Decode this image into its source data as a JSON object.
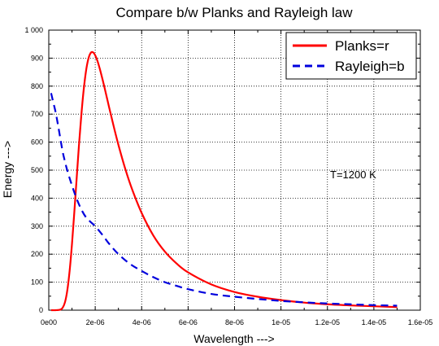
{
  "chart_data": {
    "type": "line",
    "title": "Compare b/w Planks and Rayleigh law",
    "xlabel": "Wavelength --->",
    "ylabel": "Energy --->",
    "xlim": [
      0,
      1.6e-05
    ],
    "ylim": [
      0,
      1000
    ],
    "x_ticks": [
      0,
      2e-06,
      4e-06,
      6e-06,
      8e-06,
      1e-05,
      1.2e-05,
      1.4e-05,
      1.6e-05
    ],
    "x_tick_labels": [
      "0e00",
      "2e-06",
      "4e-06",
      "6e-06",
      "8e-06",
      "1e-05",
      "1.2e-05",
      "1.4e-05",
      "1.6e-05"
    ],
    "y_ticks": [
      0,
      100,
      200,
      300,
      400,
      500,
      600,
      700,
      800,
      900,
      1000
    ],
    "y_tick_labels": [
      "0",
      "100",
      "200",
      "300",
      "400",
      "500",
      "600",
      "700",
      "800",
      "900",
      "1 000"
    ],
    "grid": true,
    "legend_position": "top-right",
    "annotation": "T=1200 K",
    "series": [
      {
        "name": "Planks=r",
        "color": "#ff0000",
        "style": "solid",
        "x": [
          1e-07,
          3e-07,
          5e-07,
          6e-07,
          7e-07,
          8e-07,
          9e-07,
          1e-06,
          1.1e-06,
          1.2e-06,
          1.3e-06,
          1.4e-06,
          1.5e-06,
          1.6e-06,
          1.7e-06,
          1.8e-06,
          1.9e-06,
          2e-06,
          2.1e-06,
          2.2e-06,
          2.3e-06,
          2.4e-06,
          2.6e-06,
          2.8e-06,
          3e-06,
          3.3e-06,
          3.6e-06,
          4e-06,
          4.5e-06,
          5e-06,
          5.5e-06,
          6e-06,
          7e-06,
          8e-06,
          9e-06,
          1e-05,
          1.1e-05,
          1.2e-05,
          1.3e-05,
          1.4e-05,
          1.5e-05
        ],
        "y": [
          0,
          0,
          2,
          9,
          29,
          72,
          142,
          237,
          350,
          470,
          589,
          695,
          784,
          852,
          896,
          918,
          921,
          910,
          889,
          861,
          829,
          795,
          724,
          655,
          590,
          503,
          429,
          347,
          267,
          209,
          167,
          135,
          92,
          65,
          48,
          36,
          27,
          21,
          17,
          14,
          11
        ]
      },
      {
        "name": "Rayleigh=b",
        "color": "#0000dd",
        "style": "dashed",
        "x": [
          1e-07,
          2e-07,
          3e-07,
          4e-07,
          5e-07,
          6e-07,
          7e-07,
          8e-07,
          1e-06,
          1.2e-06,
          1.4e-06,
          1.6e-06,
          1.8e-06,
          2e-06,
          2.3e-06,
          2.6e-06,
          3e-06,
          3.5e-06,
          4e-06,
          4.5e-06,
          5e-06,
          5.5e-06,
          6e-06,
          7e-06,
          8e-06,
          9e-06,
          1e-05,
          1.1e-05,
          1.2e-05,
          1.3e-05,
          1.4e-05,
          1.5e-05
        ],
        "y": [
          775,
          740,
          705,
          660,
          612,
          565,
          530,
          498,
          445,
          398,
          360,
          332,
          315,
          300,
          270,
          237,
          200,
          165,
          140,
          118,
          100,
          87,
          75,
          58,
          48,
          40,
          33,
          28,
          24,
          21,
          18,
          16
        ]
      }
    ]
  }
}
